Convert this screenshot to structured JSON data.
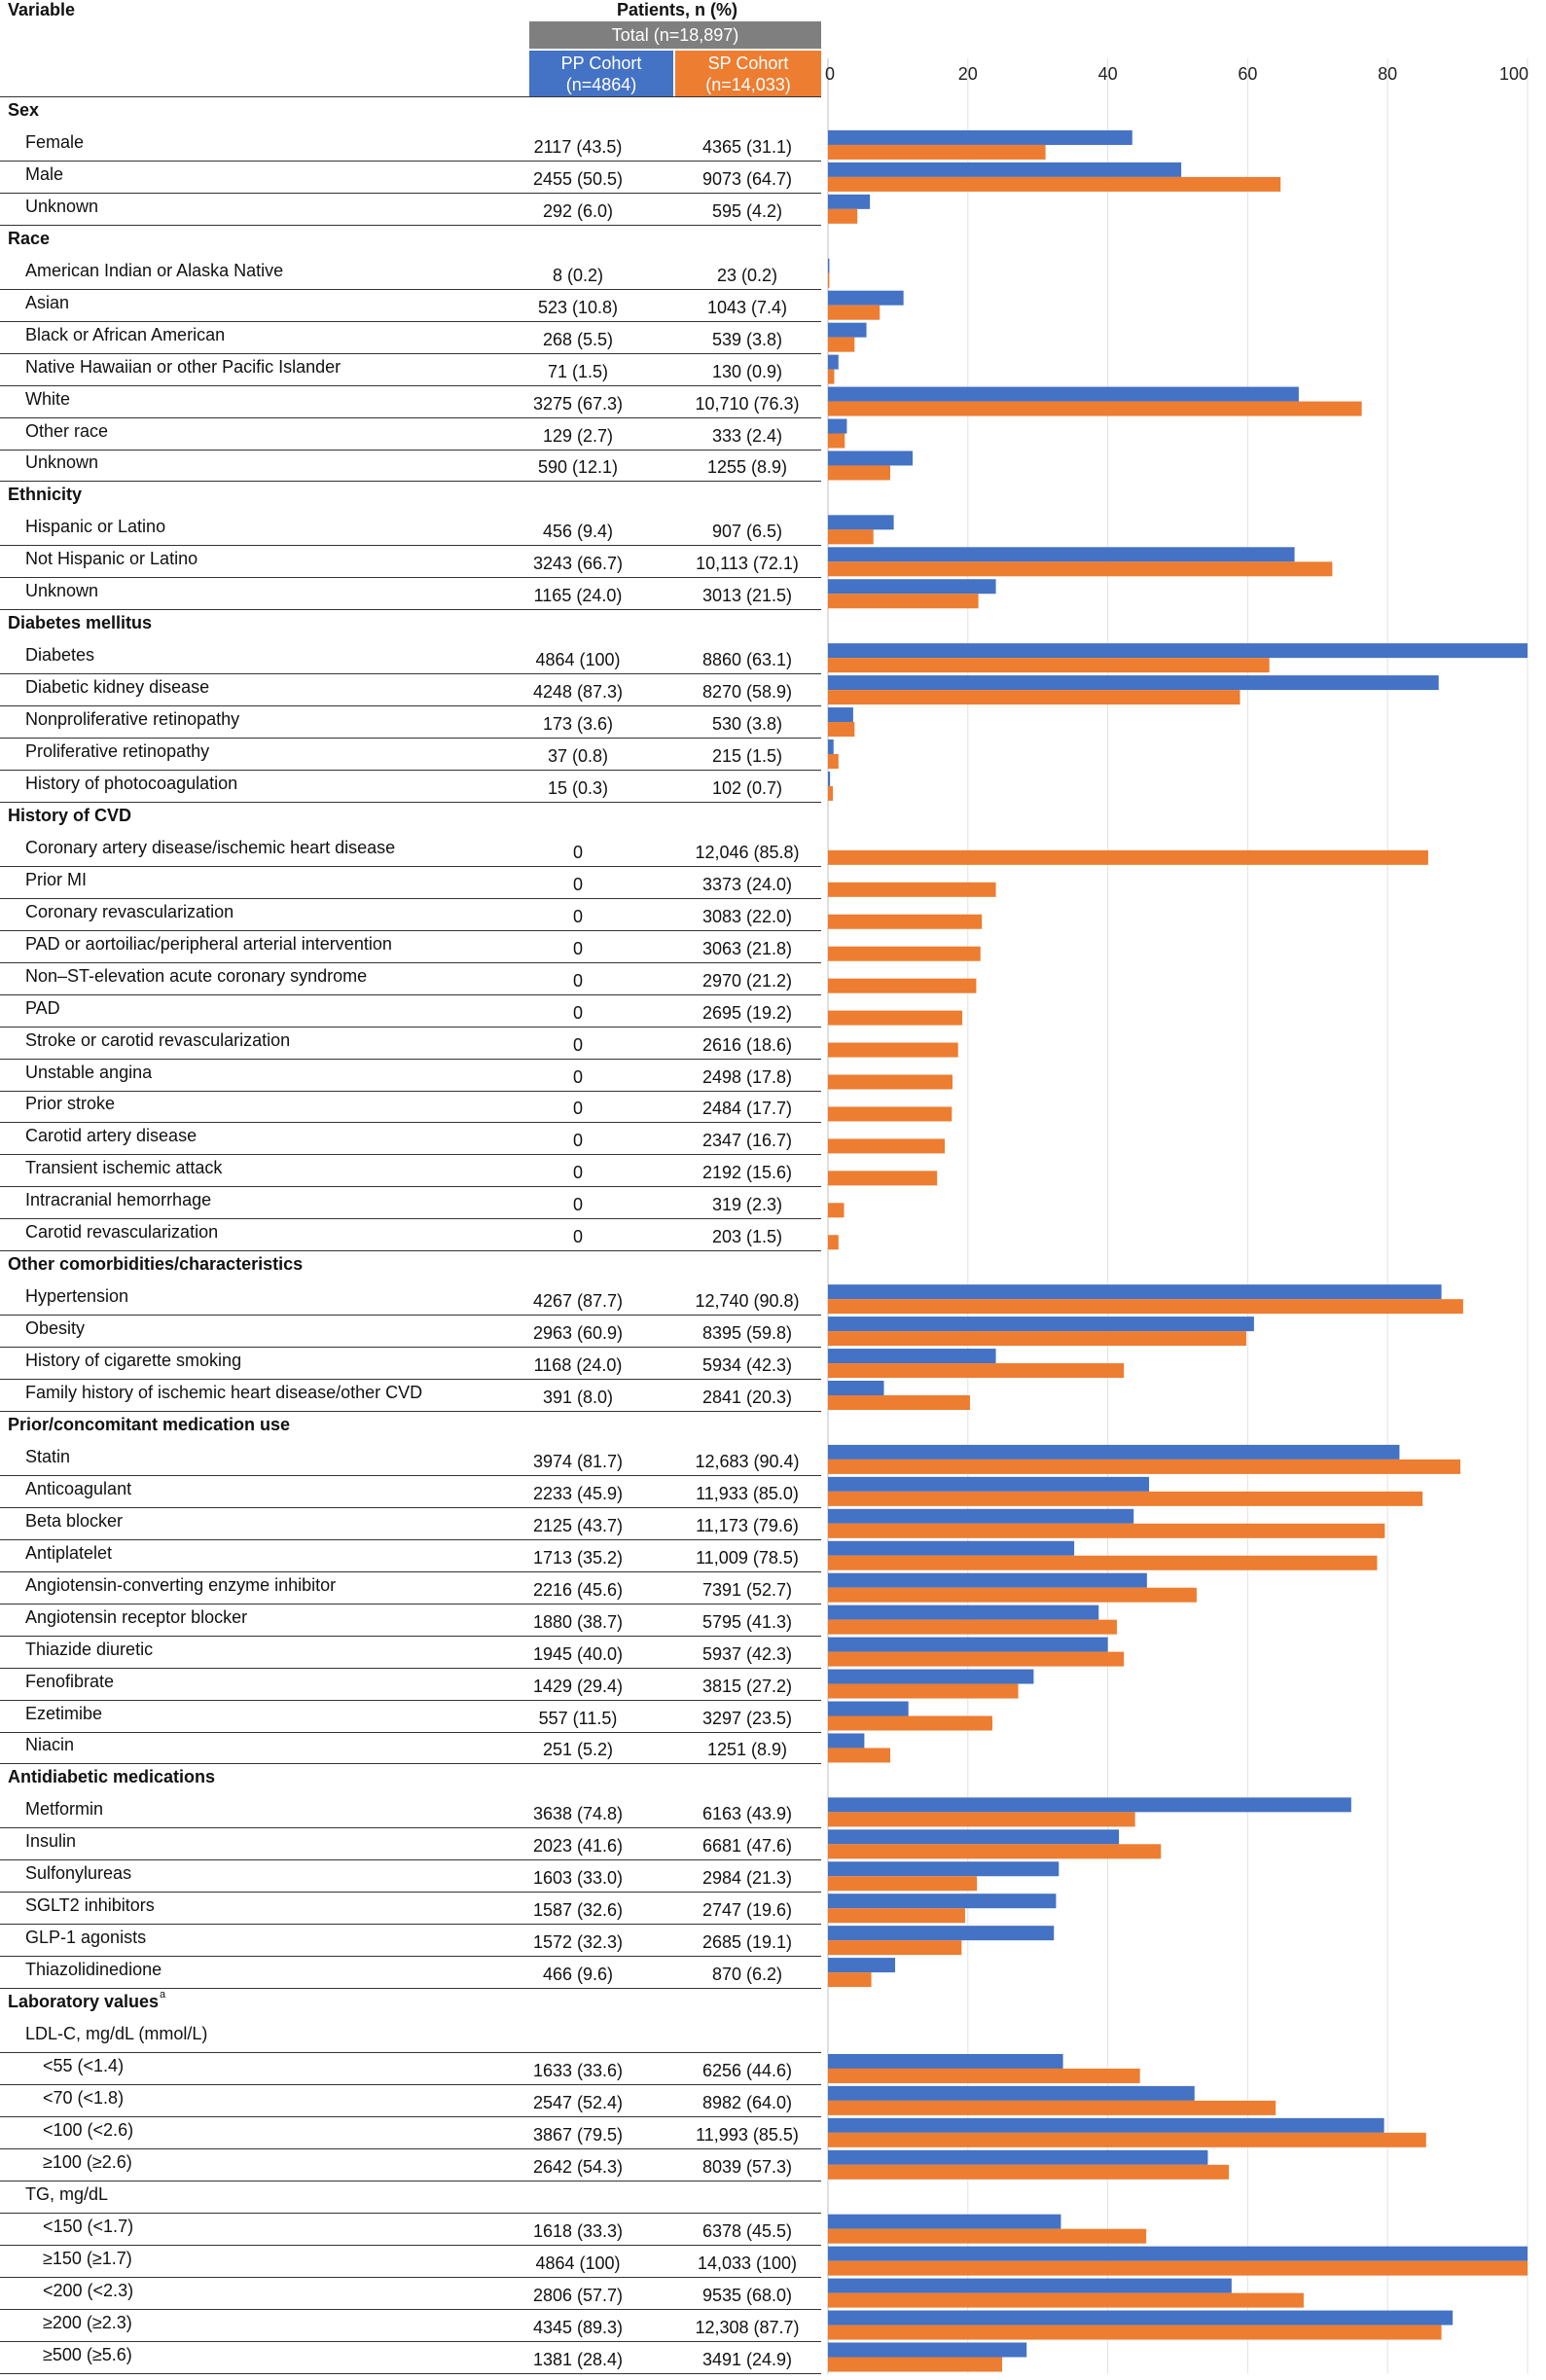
{
  "header": {
    "variable": "Variable",
    "patients": "Patients, n (%)",
    "total": "Total (n=18,897)",
    "pp_name": "PP Cohort",
    "pp_n": "(n=4864)",
    "sp_name": "SP Cohort",
    "sp_n": "(n=14,033)"
  },
  "colors": {
    "pp": "#4472c4",
    "sp": "#ed7d31",
    "total": "#7f7f7f"
  },
  "chart_data": {
    "type": "bar",
    "orientation": "horizontal",
    "xlim": [
      0,
      100
    ],
    "xticks": [
      0,
      20,
      40,
      60,
      80,
      100
    ],
    "grid": true,
    "series": [
      {
        "name": "PP Cohort (n=4864)",
        "color": "#4472c4"
      },
      {
        "name": "SP Cohort (n=14,033)",
        "color": "#ed7d31"
      }
    ],
    "rows": [
      {
        "type": "section",
        "label": "Sex"
      },
      {
        "label": "Female",
        "pp": "2117 (43.5)",
        "sp": "4365 (31.1)",
        "p1": 43.5,
        "p2": 31.1
      },
      {
        "label": "Male",
        "pp": "2455 (50.5)",
        "sp": "9073 (64.7)",
        "p1": 50.5,
        "p2": 64.7
      },
      {
        "label": "Unknown",
        "pp": "292 (6.0)",
        "sp": "595 (4.2)",
        "p1": 6.0,
        "p2": 4.2
      },
      {
        "type": "section",
        "label": "Race"
      },
      {
        "label": "American Indian or Alaska Native",
        "pp": "8 (0.2)",
        "sp": "23 (0.2)",
        "p1": 0.2,
        "p2": 0.2
      },
      {
        "label": "Asian",
        "pp": "523 (10.8)",
        "sp": "1043 (7.4)",
        "p1": 10.8,
        "p2": 7.4
      },
      {
        "label": "Black or African American",
        "pp": "268 (5.5)",
        "sp": "539 (3.8)",
        "p1": 5.5,
        "p2": 3.8
      },
      {
        "label": "Native Hawaiian or other Pacific Islander",
        "pp": "71 (1.5)",
        "sp": "130 (0.9)",
        "p1": 1.5,
        "p2": 0.9
      },
      {
        "label": "White",
        "pp": "3275 (67.3)",
        "sp": "10,710 (76.3)",
        "p1": 67.3,
        "p2": 76.3
      },
      {
        "label": "Other race",
        "pp": "129 (2.7)",
        "sp": "333 (2.4)",
        "p1": 2.7,
        "p2": 2.4
      },
      {
        "label": "Unknown",
        "pp": "590 (12.1)",
        "sp": "1255 (8.9)",
        "p1": 12.1,
        "p2": 8.9
      },
      {
        "type": "section",
        "label": "Ethnicity"
      },
      {
        "label": "Hispanic or Latino",
        "pp": "456 (9.4)",
        "sp": "907 (6.5)",
        "p1": 9.4,
        "p2": 6.5
      },
      {
        "label": "Not Hispanic or Latino",
        "pp": "3243 (66.7)",
        "sp": "10,113 (72.1)",
        "p1": 66.7,
        "p2": 72.1
      },
      {
        "label": "Unknown",
        "pp": "1165 (24.0)",
        "sp": "3013 (21.5)",
        "p1": 24.0,
        "p2": 21.5
      },
      {
        "type": "section",
        "label": "Diabetes mellitus"
      },
      {
        "label": "Diabetes",
        "pp": "4864 (100)",
        "sp": "8860 (63.1)",
        "p1": 100,
        "p2": 63.1
      },
      {
        "label": "Diabetic kidney disease",
        "pp": "4248 (87.3)",
        "sp": "8270 (58.9)",
        "p1": 87.3,
        "p2": 58.9
      },
      {
        "label": "Nonproliferative retinopathy",
        "pp": "173 (3.6)",
        "sp": "530 (3.8)",
        "p1": 3.6,
        "p2": 3.8
      },
      {
        "label": "Proliferative retinopathy",
        "pp": "37 (0.8)",
        "sp": "215 (1.5)",
        "p1": 0.8,
        "p2": 1.5
      },
      {
        "label": "History of photocoagulation",
        "pp": "15 (0.3)",
        "sp": "102 (0.7)",
        "p1": 0.3,
        "p2": 0.7
      },
      {
        "type": "section",
        "label": "History of CVD"
      },
      {
        "label": "Coronary artery disease/ischemic heart disease",
        "pp": "0",
        "sp": "12,046 (85.8)",
        "p1": 0,
        "p2": 85.8
      },
      {
        "label": "Prior MI",
        "pp": "0",
        "sp": "3373 (24.0)",
        "p1": 0,
        "p2": 24.0
      },
      {
        "label": "Coronary revascularization",
        "pp": "0",
        "sp": "3083 (22.0)",
        "p1": 0,
        "p2": 22.0
      },
      {
        "label": "PAD or aortoiliac/peripheral arterial intervention",
        "pp": "0",
        "sp": "3063 (21.8)",
        "p1": 0,
        "p2": 21.8
      },
      {
        "label": "Non–ST-elevation acute coronary syndrome",
        "pp": "0",
        "sp": "2970 (21.2)",
        "p1": 0,
        "p2": 21.2
      },
      {
        "label": "PAD",
        "pp": "0",
        "sp": "2695 (19.2)",
        "p1": 0,
        "p2": 19.2
      },
      {
        "label": "Stroke or carotid revascularization",
        "pp": "0",
        "sp": "2616 (18.6)",
        "p1": 0,
        "p2": 18.6
      },
      {
        "label": "Unstable angina",
        "pp": "0",
        "sp": "2498 (17.8)",
        "p1": 0,
        "p2": 17.8
      },
      {
        "label": "Prior stroke",
        "pp": "0",
        "sp": "2484 (17.7)",
        "p1": 0,
        "p2": 17.7
      },
      {
        "label": "Carotid artery disease",
        "pp": "0",
        "sp": "2347 (16.7)",
        "p1": 0,
        "p2": 16.7
      },
      {
        "label": "Transient ischemic attack",
        "pp": "0",
        "sp": "2192 (15.6)",
        "p1": 0,
        "p2": 15.6
      },
      {
        "label": "Intracranial hemorrhage",
        "pp": "0",
        "sp": "319 (2.3)",
        "p1": 0,
        "p2": 2.3
      },
      {
        "label": "Carotid revascularization",
        "pp": "0",
        "sp": "203 (1.5)",
        "p1": 0,
        "p2": 1.5
      },
      {
        "type": "section",
        "label": "Other comorbidities/characteristics"
      },
      {
        "label": "Hypertension",
        "pp": "4267 (87.7)",
        "sp": "12,740 (90.8)",
        "p1": 87.7,
        "p2": 90.8
      },
      {
        "label": "Obesity",
        "pp": "2963 (60.9)",
        "sp": "8395 (59.8)",
        "p1": 60.9,
        "p2": 59.8
      },
      {
        "label": "History of cigarette smoking",
        "pp": "1168 (24.0)",
        "sp": "5934 (42.3)",
        "p1": 24.0,
        "p2": 42.3
      },
      {
        "label": "Family history of ischemic heart disease/other CVD",
        "pp": "391 (8.0)",
        "sp": "2841 (20.3)",
        "p1": 8.0,
        "p2": 20.3
      },
      {
        "type": "section",
        "label": "Prior/concomitant medication use"
      },
      {
        "label": "Statin",
        "pp": "3974 (81.7)",
        "sp": "12,683 (90.4)",
        "p1": 81.7,
        "p2": 90.4
      },
      {
        "label": "Anticoagulant",
        "pp": "2233 (45.9)",
        "sp": "11,933 (85.0)",
        "p1": 45.9,
        "p2": 85.0
      },
      {
        "label": "Beta blocker",
        "pp": "2125 (43.7)",
        "sp": "11,173 (79.6)",
        "p1": 43.7,
        "p2": 79.6
      },
      {
        "label": "Antiplatelet",
        "pp": "1713 (35.2)",
        "sp": "11,009 (78.5)",
        "p1": 35.2,
        "p2": 78.5
      },
      {
        "label": "Angiotensin-converting enzyme inhibitor",
        "pp": "2216 (45.6)",
        "sp": "7391 (52.7)",
        "p1": 45.6,
        "p2": 52.7
      },
      {
        "label": "Angiotensin receptor blocker",
        "pp": "1880 (38.7)",
        "sp": "5795 (41.3)",
        "p1": 38.7,
        "p2": 41.3
      },
      {
        "label": "Thiazide diuretic",
        "pp": "1945 (40.0)",
        "sp": "5937 (42.3)",
        "p1": 40.0,
        "p2": 42.3
      },
      {
        "label": "Fenofibrate",
        "pp": "1429 (29.4)",
        "sp": "3815 (27.2)",
        "p1": 29.4,
        "p2": 27.2
      },
      {
        "label": "Ezetimibe",
        "pp": "557 (11.5)",
        "sp": "3297 (23.5)",
        "p1": 11.5,
        "p2": 23.5
      },
      {
        "label": "Niacin",
        "pp": "251 (5.2)",
        "sp": "1251 (8.9)",
        "p1": 5.2,
        "p2": 8.9
      },
      {
        "type": "section",
        "label": "Antidiabetic medications"
      },
      {
        "label": "Metformin",
        "pp": "3638 (74.8)",
        "sp": "6163 (43.9)",
        "p1": 74.8,
        "p2": 43.9
      },
      {
        "label": "Insulin",
        "pp": "2023 (41.6)",
        "sp": "6681 (47.6)",
        "p1": 41.6,
        "p2": 47.6
      },
      {
        "label": "Sulfonylureas",
        "pp": "1603 (33.0)",
        "sp": "2984 (21.3)",
        "p1": 33.0,
        "p2": 21.3
      },
      {
        "label": "SGLT2 inhibitors",
        "pp": "1587 (32.6)",
        "sp": "2747 (19.6)",
        "p1": 32.6,
        "p2": 19.6
      },
      {
        "label": "GLP-1 agonists",
        "pp": "1572 (32.3)",
        "sp": "2685 (19.1)",
        "p1": 32.3,
        "p2": 19.1
      },
      {
        "label": "Thiazolidinedione",
        "pp": "466 (9.6)",
        "sp": "870 (6.2)",
        "p1": 9.6,
        "p2": 6.2
      },
      {
        "type": "section",
        "label": "Laboratory values",
        "sup": "a"
      },
      {
        "type": "subhead",
        "label": "LDL-C, mg/dL (mmol/L)"
      },
      {
        "indent": 2,
        "label": "<55 (<1.4)",
        "pp": "1633 (33.6)",
        "sp": "6256 (44.6)",
        "p1": 33.6,
        "p2": 44.6
      },
      {
        "indent": 2,
        "label": "<70 (<1.8)",
        "pp": "2547 (52.4)",
        "sp": "8982 (64.0)",
        "p1": 52.4,
        "p2": 64.0
      },
      {
        "indent": 2,
        "label": "<100 (<2.6)",
        "pp": "3867 (79.5)",
        "sp": "11,993 (85.5)",
        "p1": 79.5,
        "p2": 85.5
      },
      {
        "indent": 2,
        "label": "≥100 (≥2.6)",
        "pp": "2642 (54.3)",
        "sp": "8039 (57.3)",
        "p1": 54.3,
        "p2": 57.3
      },
      {
        "type": "subhead",
        "label": "TG, mg/dL"
      },
      {
        "indent": 2,
        "label": "<150 (<1.7)",
        "pp": "1618 (33.3)",
        "sp": "6378 (45.5)",
        "p1": 33.3,
        "p2": 45.5
      },
      {
        "indent": 2,
        "label": "≥150 (≥1.7)",
        "pp": "4864 (100)",
        "sp": "14,033 (100)",
        "p1": 100,
        "p2": 100
      },
      {
        "indent": 2,
        "label": "<200 (<2.3)",
        "pp": "2806 (57.7)",
        "sp": "9535 (68.0)",
        "p1": 57.7,
        "p2": 68.0
      },
      {
        "indent": 2,
        "label": "≥200 (≥2.3)",
        "pp": "4345 (89.3)",
        "sp": "12,308 (87.7)",
        "p1": 89.3,
        "p2": 87.7
      },
      {
        "indent": 2,
        "label": "≥500 (≥5.6)",
        "pp": "1381 (28.4)",
        "sp": "3491 (24.9)",
        "p1": 28.4,
        "p2": 24.9
      }
    ]
  }
}
